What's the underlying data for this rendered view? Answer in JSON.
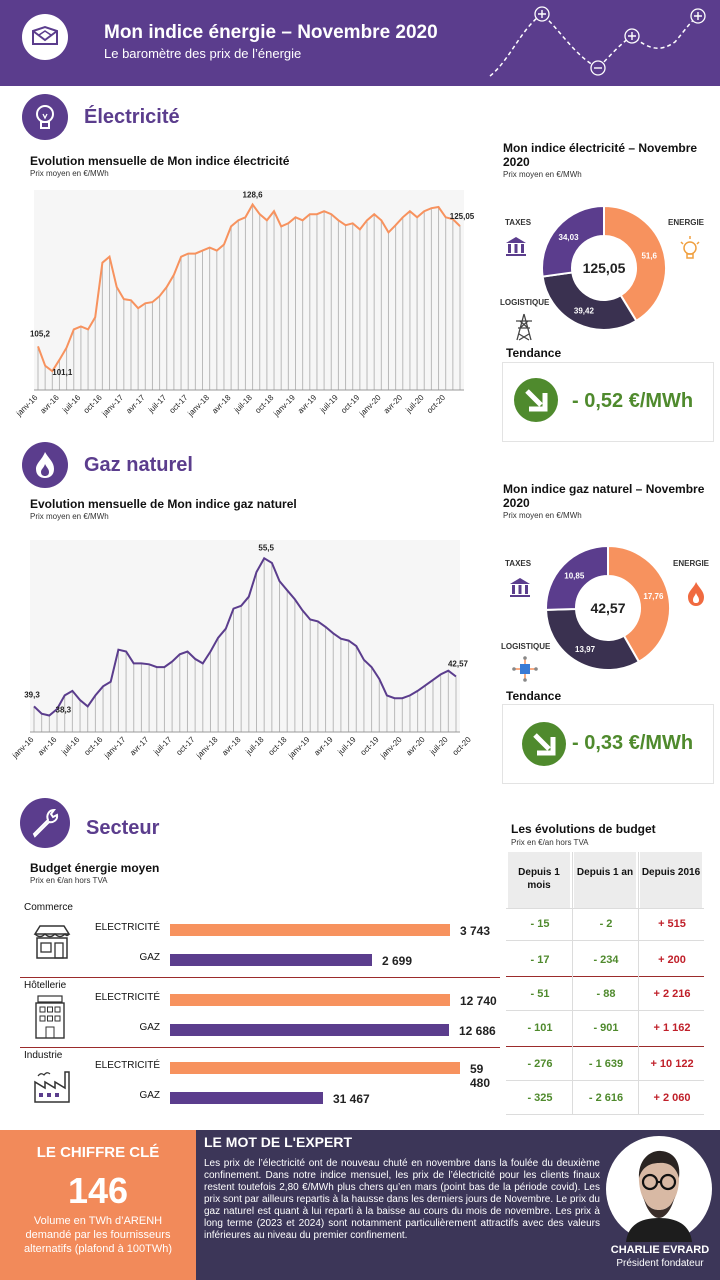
{
  "header": {
    "title": "Mon indice énergie – Novembre 2020",
    "subtitle": "Le baromètre des prix de l’énergie"
  },
  "electricity": {
    "section_title": "Électricité",
    "chart_title": "Evolution mensuelle de Mon indice électricité",
    "chart_unit": "Prix moyen en €/MWh",
    "donut_title": "Mon indice électricité – Novembre 2020",
    "donut_unit": "Prix moyen en €/MWh",
    "labels": {
      "taxes": "TAXES",
      "energie": "ENERGIE",
      "logistique": "LOGISTIQUE"
    },
    "trend_label": "Tendance",
    "trend_value": "- 0,52 €/MWh"
  },
  "gas": {
    "section_title": "Gaz naturel",
    "chart_title": "Evolution mensuelle de Mon indice gaz naturel",
    "chart_unit": "Prix moyen en €/MWh",
    "donut_title": "Mon indice gaz naturel – Novembre 2020",
    "donut_unit": "Prix moyen en €/MWh",
    "labels": {
      "taxes": "TAXES",
      "energie": "ENERGIE",
      "logistique": "LOGISTIQUE"
    },
    "trend_label": "Tendance",
    "trend_value": "- 0,33 €/MWh"
  },
  "sector": {
    "section_title": "Secteur",
    "budget_title": "Budget énergie moyen",
    "budget_unit": "Prix en €/an hors TVA",
    "table_title": "Les évolutions de budget",
    "table_unit": "Prix en €/an hors TVA",
    "table_headers": [
      "Depuis 1 mois",
      "Depuis 1 an",
      "Depuis 2016"
    ],
    "table_rows": [
      [
        "- 15",
        "- 2",
        "+ 515"
      ],
      [
        "- 17",
        "- 234",
        "+ 200"
      ],
      [
        "- 51",
        "- 88",
        "+ 2 216"
      ],
      [
        "- 101",
        "- 901",
        "+ 1 162"
      ],
      [
        "- 276",
        "- 1 639",
        "+ 10 122"
      ],
      [
        "- 325",
        "- 2 616",
        "+ 2 060"
      ]
    ]
  },
  "key_figure": {
    "title": "LE CHIFFRE CLÉ",
    "value": "146",
    "description": "Volume en TWh d’ARENH demandé par les fournisseurs alternatifs (plafond à 100TWh)"
  },
  "expert": {
    "title": "LE MOT DE L'EXPERT",
    "text": "Les prix de l’électricité ont de nouveau chuté en novembre dans la foulée du deuxième confinement. Dans notre indice mensuel, les prix de l’électricité pour les clients finaux restent toutefois 2,80 €/MWh plus chers qu’en mars (point bas de la période covid). Les prix sont par ailleurs repartis à la hausse dans les derniers jours de Novembre. Le prix du gaz naturel est quant à lui reparti à la baisse au cours du mois de novembre. Les prix à long terme (2023 et 2024) sont notamment particulièrement attractifs avec des valeurs inférieures au niveau du premier confinement.",
    "name": "CHARLIE EVRARD",
    "role": "Président fondateur"
  },
  "colors": {
    "purple": "#5b3d8d",
    "orange": "#f7925e",
    "dark": "#3a3150",
    "green": "#4f8a2d",
    "red": "#c0202a"
  },
  "chart_data": [
    {
      "type": "line",
      "title": "Evolution mensuelle de Mon indice électricité",
      "ylabel": "Prix moyen en €/MWh",
      "x_tick_labels": [
        "janv-16",
        "avr-16",
        "juil-16",
        "oct-16",
        "janv-17",
        "avr-17",
        "juil-17",
        "oct-17",
        "janv-18",
        "avr-18",
        "juil-18",
        "oct-18",
        "janv-19",
        "avr-19",
        "juil-19",
        "oct-19",
        "janv-20",
        "avr-20",
        "juil-20",
        "oct-20"
      ],
      "series": [
        {
          "values": [
            105.2,
            102,
            101.1,
            103,
            105,
            108,
            108.5,
            108,
            110,
            119,
            120,
            115,
            113,
            112.8,
            111.5,
            112.3,
            112.5,
            113.5,
            115,
            117,
            120,
            120.5,
            120.5,
            121,
            121.5,
            121,
            122,
            125,
            126,
            126.5,
            128.6,
            127,
            126,
            127.5,
            125,
            125.5,
            126.5,
            126,
            127,
            127,
            127.5,
            127,
            126,
            125.2,
            125.5,
            124.5,
            126,
            127,
            126,
            124,
            125.2,
            126.5,
            127.5,
            126.5,
            127.5,
            128,
            128.2,
            126.5,
            126.2,
            125.05
          ]
        }
      ],
      "point_labels": [
        {
          "index": 0,
          "text": "105,2"
        },
        {
          "index": 2,
          "text": "101,1"
        },
        {
          "index": 30,
          "text": "128,6"
        },
        {
          "index": 59,
          "text": "125,05"
        }
      ],
      "ylim": [
        98,
        131
      ]
    },
    {
      "type": "pie",
      "title": "Mon indice électricité – Novembre 2020",
      "center_label": "125,05",
      "slices": [
        {
          "label": "ENERGIE",
          "value": 51.6,
          "text": "51,6",
          "color": "#f7925e"
        },
        {
          "label": "LOGISTIQUE",
          "value": 39.42,
          "text": "39,42",
          "color": "#3a3150"
        },
        {
          "label": "TAXES",
          "value": 34.03,
          "text": "34,03",
          "color": "#5b3d8d"
        }
      ]
    },
    {
      "type": "line",
      "title": "Evolution mensuelle de Mon indice gaz naturel",
      "ylabel": "Prix moyen en €/MWh",
      "x_tick_labels": [
        "janv-16",
        "avr-16",
        "juil-16",
        "oct-16",
        "janv-17",
        "avr-17",
        "juil-17",
        "oct-17",
        "janv-18",
        "avr-18",
        "juil-18",
        "oct-18",
        "janv-19",
        "avr-19",
        "juil-19",
        "oct-19",
        "janv-20",
        "avr-20",
        "juil-20",
        "oct-20"
      ],
      "series": [
        {
          "values": [
            39.3,
            38.5,
            38.3,
            39,
            40.5,
            41,
            40,
            39.3,
            40.5,
            41.5,
            42,
            45.5,
            45.3,
            44,
            44,
            43.9,
            43.6,
            43.6,
            44.2,
            45,
            45.3,
            44.5,
            44,
            45.3,
            46.8,
            47.8,
            50,
            50.3,
            51.3,
            54,
            55.5,
            55,
            53,
            52,
            51,
            49.8,
            48.8,
            48.6,
            48,
            47.3,
            46.7,
            46.5,
            45.9,
            44.4,
            43.6,
            42.3,
            40.5,
            40.2,
            40.2,
            40.5,
            41,
            41.6,
            42.2,
            42.8,
            43.2,
            42.57
          ]
        }
      ],
      "point_labels": [
        {
          "index": 0,
          "text": "39,3"
        },
        {
          "index": 2,
          "text": "38,3"
        },
        {
          "index": 30,
          "text": "55,5"
        },
        {
          "index": 55,
          "text": "42,57"
        }
      ],
      "ylim": [
        36.5,
        57.5
      ]
    },
    {
      "type": "pie",
      "title": "Mon indice gaz naturel – Novembre 2020",
      "center_label": "42,57",
      "slices": [
        {
          "label": "ENERGIE",
          "value": 17.76,
          "text": "17,76",
          "color": "#f7925e"
        },
        {
          "label": "LOGISTIQUE",
          "value": 13.97,
          "text": "13,97",
          "color": "#3a3150"
        },
        {
          "label": "TAXES",
          "value": 10.85,
          "text": "10,85",
          "color": "#5b3d8d"
        }
      ]
    },
    {
      "type": "bar",
      "title": "Budget énergie moyen",
      "groups": [
        {
          "sector": "Commerce",
          "bars": [
            {
              "label": "ELECTRICITÉ",
              "value": 3743,
              "text": "3 743"
            },
            {
              "label": "GAZ",
              "value": 2699,
              "text": "2 699"
            }
          ]
        },
        {
          "sector": "Hôtellerie",
          "bars": [
            {
              "label": "ELECTRICITÉ",
              "value": 12740,
              "text": "12 740"
            },
            {
              "label": "GAZ",
              "value": 12686,
              "text": "12 686"
            }
          ]
        },
        {
          "sector": "Industrie",
          "bars": [
            {
              "label": "ELECTRICITÉ",
              "value": 59480,
              "text": "59 480"
            },
            {
              "label": "GAZ",
              "value": 31467,
              "text": "31 467"
            }
          ]
        }
      ]
    }
  ]
}
